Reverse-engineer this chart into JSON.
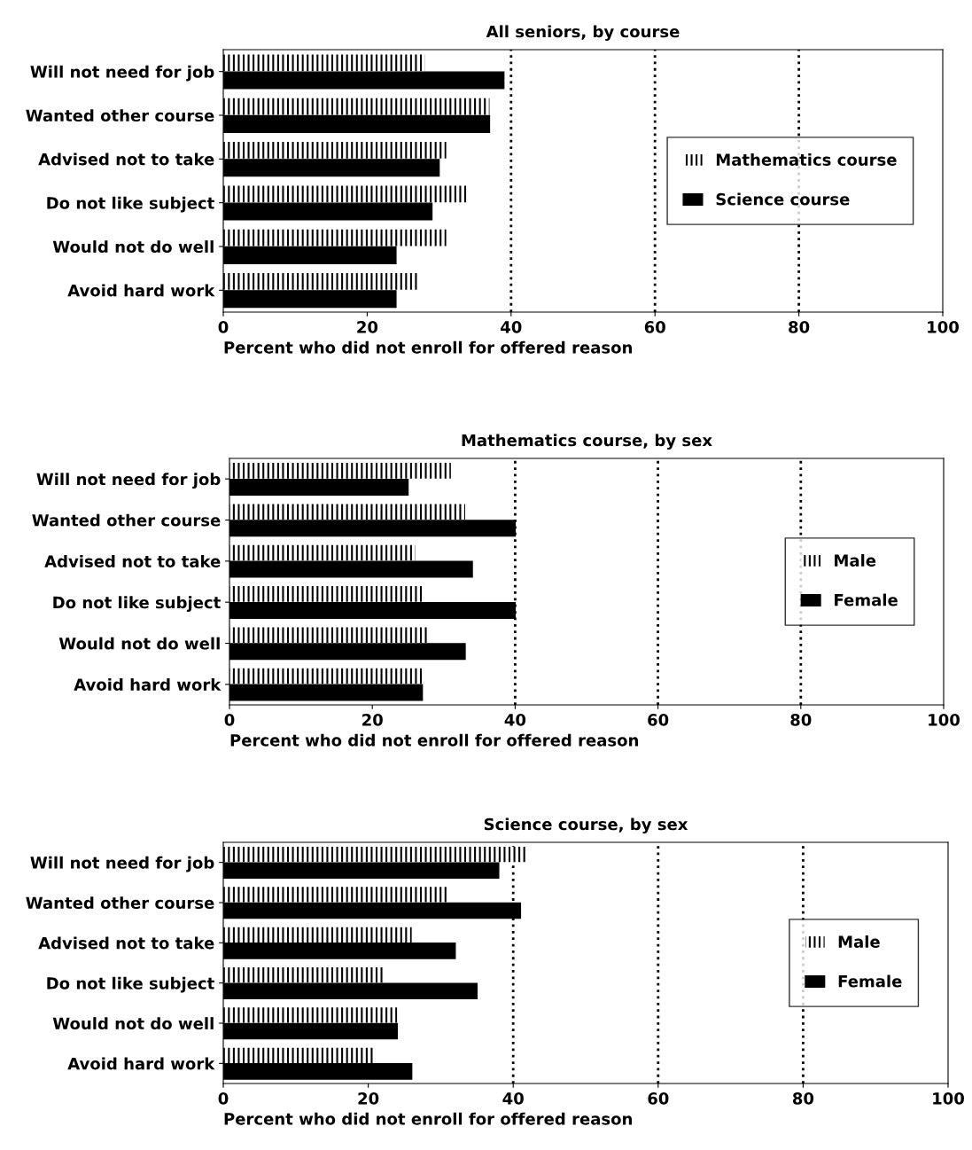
{
  "chart_data": [
    {
      "type": "bar",
      "orientation": "horizontal",
      "title": "All seniors, by course",
      "xlabel": "Percent who did not enroll for offered reason",
      "categories": [
        "Will not need for job",
        "Wanted other course",
        "Advised not to take",
        "Do not like subject",
        "Would not do well",
        "Avoid hard work"
      ],
      "series": [
        {
          "name": "Mathematics course",
          "color": "#ffffff",
          "values": [
            28,
            37,
            31,
            34,
            31,
            27
          ]
        },
        {
          "name": "Science course",
          "color": "#000000",
          "values": [
            39,
            37,
            30,
            29,
            24,
            24
          ]
        }
      ],
      "xlim": [
        0,
        100
      ],
      "xticks": [
        0,
        20,
        40,
        60,
        80,
        100
      ],
      "ref_lines": [
        {
          "axis": "x",
          "value": 40,
          "line_style": "dotted"
        },
        {
          "axis": "x",
          "value": 60,
          "line_style": "dotted"
        },
        {
          "axis": "x",
          "value": 80,
          "line_style": "dotted"
        }
      ],
      "legend": "right",
      "grid": false
    },
    {
      "type": "bar",
      "orientation": "horizontal",
      "title": "Mathematics course, by sex",
      "xlabel": "Percent who did not enroll for offered reason",
      "categories": [
        "Will not need for job",
        "Wanted other course",
        "Advised not to take",
        "Do not like subject",
        "Would not do well",
        "Avoid hard work"
      ],
      "series": [
        {
          "name": "Male",
          "color": "#ffffff",
          "values": [
            31,
            33,
            26,
            27,
            28,
            27
          ]
        },
        {
          "name": "Female",
          "color": "#000000",
          "values": [
            25,
            40,
            34,
            40,
            33,
            27
          ]
        }
      ],
      "xlim": [
        0,
        100
      ],
      "xticks": [
        0,
        20,
        40,
        60,
        80,
        100
      ],
      "ref_lines": [
        {
          "axis": "x",
          "value": 40,
          "line_style": "dotted"
        },
        {
          "axis": "x",
          "value": 60,
          "line_style": "dotted"
        },
        {
          "axis": "x",
          "value": 80,
          "line_style": "dotted"
        }
      ],
      "legend": "right",
      "grid": false
    },
    {
      "type": "bar",
      "orientation": "horizontal",
      "title": "Science course, by sex",
      "xlabel": "Percent who did not enroll for offered reason",
      "categories": [
        "Will not need for job",
        "Wanted other course",
        "Advised not to take",
        "Do not like subject",
        "Would not do well",
        "Avoid hard work"
      ],
      "series": [
        {
          "name": "Male",
          "color": "#ffffff",
          "values": [
            42,
            31,
            26,
            22,
            24,
            21
          ]
        },
        {
          "name": "Female",
          "color": "#000000",
          "values": [
            38,
            41,
            32,
            35,
            24,
            26
          ]
        }
      ],
      "xlim": [
        0,
        100
      ],
      "xticks": [
        0,
        20,
        40,
        60,
        80,
        100
      ],
      "ref_lines": [
        {
          "axis": "x",
          "value": 40,
          "line_style": "dotted"
        },
        {
          "axis": "x",
          "value": 60,
          "line_style": "dotted"
        },
        {
          "axis": "x",
          "value": 80,
          "line_style": "dotted"
        }
      ],
      "legend": "right",
      "grid": false
    }
  ]
}
